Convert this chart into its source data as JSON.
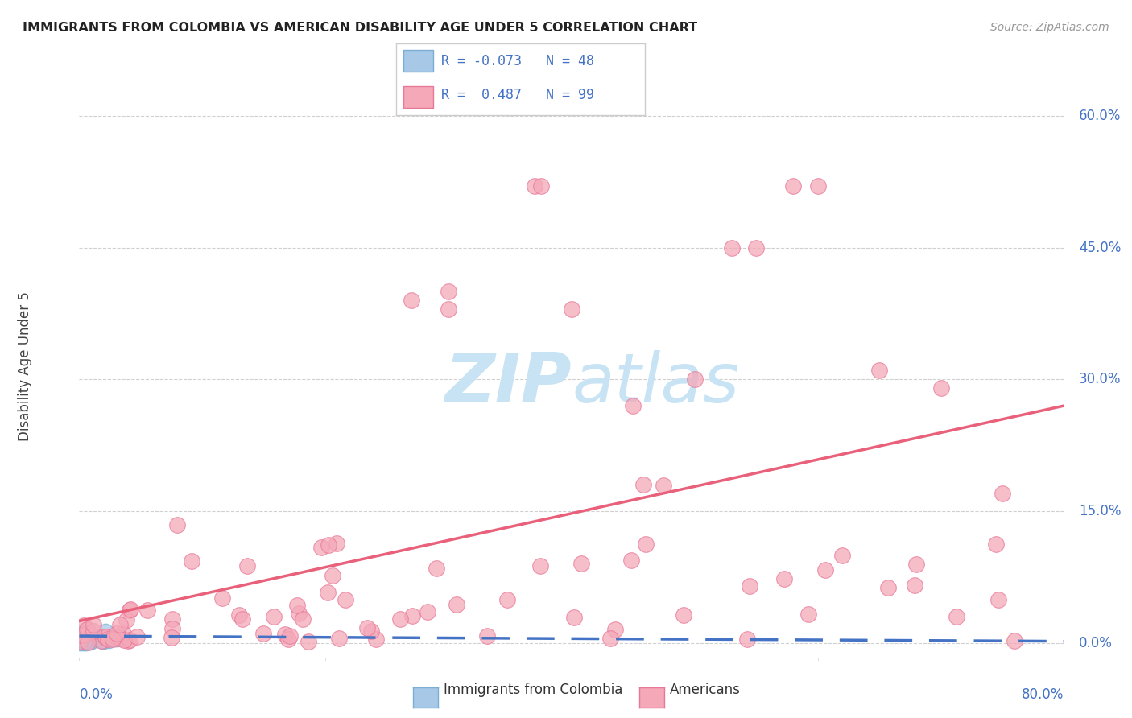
{
  "title": "IMMIGRANTS FROM COLOMBIA VS AMERICAN DISABILITY AGE UNDER 5 CORRELATION CHART",
  "source": "Source: ZipAtlas.com",
  "ylabel": "Disability Age Under 5",
  "ytick_vals": [
    0.0,
    15.0,
    30.0,
    45.0,
    60.0
  ],
  "xlim": [
    0.0,
    80.0
  ],
  "ylim": [
    -2.0,
    65.0
  ],
  "color_blue_line": "#4472c4",
  "color_pink_line": "#e8607a",
  "color_blue_scatter": "#a8c8e8",
  "color_pink_scatter": "#f4a8b8",
  "color_blue_edge": "#7aaed4",
  "color_pink_edge": "#e87898",
  "watermark_color": "#c8e4f4",
  "grid_color": "#d0d0d0",
  "blue_line_start_y": 0.8,
  "blue_line_end_y": 0.2,
  "pink_line_start_y": 2.5,
  "pink_line_end_y": 27.0,
  "pink_line_start_x": 0.0,
  "pink_line_end_x": 80.0
}
